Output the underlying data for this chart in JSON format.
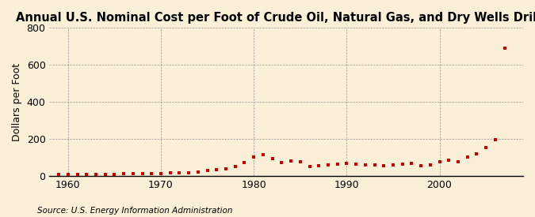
{
  "title": "Annual U.S. Nominal Cost per Foot of Crude Oil, Natural Gas, and Dry Wells Drilled",
  "ylabel": "Dollars per Foot",
  "source": "Source: U.S. Energy Information Administration",
  "background_color": "#FAF0D7",
  "marker_color": "#CC0000",
  "years": [
    1959,
    1960,
    1961,
    1962,
    1963,
    1964,
    1965,
    1966,
    1967,
    1968,
    1969,
    1970,
    1971,
    1972,
    1973,
    1974,
    1975,
    1976,
    1977,
    1978,
    1979,
    1980,
    1981,
    1982,
    1983,
    1984,
    1985,
    1986,
    1987,
    1988,
    1989,
    1990,
    1991,
    1992,
    1993,
    1994,
    1995,
    1996,
    1997,
    1998,
    1999,
    2000,
    2001,
    2002,
    2003,
    2004,
    2005,
    2006,
    2007
  ],
  "values": [
    8,
    9,
    9,
    9,
    9,
    10,
    10,
    11,
    11,
    12,
    13,
    14,
    15,
    15,
    18,
    22,
    28,
    33,
    40,
    52,
    70,
    100,
    113,
    92,
    72,
    80,
    76,
    52,
    57,
    58,
    62,
    68,
    62,
    60,
    58,
    56,
    60,
    65,
    68,
    55,
    58,
    75,
    83,
    77,
    100,
    120,
    155,
    195,
    690
  ],
  "xlim": [
    1958,
    2009
  ],
  "ylim": [
    0,
    800
  ],
  "yticks": [
    0,
    200,
    400,
    600,
    800
  ],
  "xticks": [
    1960,
    1970,
    1980,
    1990,
    2000
  ],
  "vline_years": [
    1960,
    1970,
    1980,
    1990,
    2000
  ],
  "title_fontsize": 10.5,
  "axis_fontsize": 9,
  "source_fontsize": 7.5
}
